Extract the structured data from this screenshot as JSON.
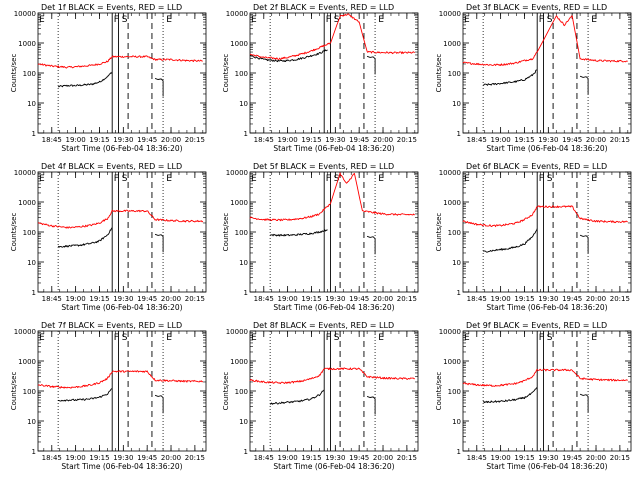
{
  "colors": {
    "events": "#000000",
    "lld": "#ff0000",
    "axis": "#000000",
    "background": "#ffffff"
  },
  "chart_data": {
    "type": "line",
    "y_scale": "log",
    "ylim": [
      1,
      10000
    ],
    "xlim": [
      "18:36:20",
      "20:22"
    ],
    "ylabel": "Counts/sec",
    "xlabel": "Start Time (06-Feb-04 18:36:20)",
    "x_ticks": [
      "18:45",
      "19:00",
      "19:15",
      "19:30",
      "19:45",
      "20:00",
      "20:15"
    ],
    "y_ticks": [
      "1",
      "10",
      "100",
      "1000",
      "10000"
    ],
    "marker_labels": [
      "E",
      "F",
      "S",
      "E"
    ],
    "panels": [
      {
        "title": "Det 1f BLACK = Events, RED = LLD",
        "series": [
          {
            "name": "Events",
            "x": [
              "18:49",
              "18:55",
              "19:00",
              "19:05",
              "19:10",
              "19:15",
              "19:20",
              "19:23"
            ],
            "values": [
              35,
              38,
              38,
              40,
              42,
              50,
              75,
              110
            ]
          },
          {
            "name": "LLD",
            "x": [
              "18:36:20",
              "18:45",
              "18:55",
              "19:00",
              "19:05",
              "19:10",
              "19:15",
              "19:20",
              "19:23",
              "19:45",
              "19:50",
              "20:00",
              "20:10",
              "20:20"
            ],
            "values": [
              200,
              170,
              155,
              160,
              170,
              180,
              200,
              240,
              350,
              350,
              280,
              280,
              260,
              250
            ]
          }
        ]
      },
      {
        "title": "Det 2f BLACK = Events, RED = LLD",
        "series": [
          {
            "name": "Events",
            "x": [
              "18:36:20",
              "18:45",
              "18:55",
              "19:00",
              "19:05",
              "19:10",
              "19:15",
              "19:20",
              "19:25"
            ],
            "values": [
              380,
              280,
              250,
              260,
              280,
              320,
              380,
              450,
              600
            ]
          },
          {
            "name": "LLD",
            "x": [
              "18:36:20",
              "18:45",
              "18:55",
              "19:00",
              "19:05",
              "19:10",
              "19:15",
              "19:20",
              "19:27",
              "19:33",
              "19:38",
              "19:45",
              "19:50",
              "20:00",
              "20:10",
              "20:20"
            ],
            "values": [
              420,
              330,
              300,
              330,
              380,
              450,
              550,
              700,
              1000,
              8000,
              9000,
              5000,
              500,
              480,
              470,
              480
            ]
          }
        ]
      },
      {
        "title": "Det 3f BLACK = Events, RED = LLD",
        "series": [
          {
            "name": "Events",
            "x": [
              "18:49",
              "18:55",
              "19:00",
              "19:05",
              "19:10",
              "19:15",
              "19:20",
              "19:23"
            ],
            "values": [
              40,
              42,
              45,
              48,
              52,
              60,
              85,
              130
            ]
          },
          {
            "name": "LLD",
            "x": [
              "18:36:20",
              "18:45",
              "18:55",
              "19:00",
              "19:05",
              "19:10",
              "19:15",
              "19:20",
              "19:23",
              "19:35",
              "19:40",
              "19:45",
              "19:50",
              "20:00",
              "20:10",
              "20:20"
            ],
            "values": [
              220,
              200,
              185,
              190,
              200,
              220,
              260,
              300,
              500,
              8000,
              4000,
              8000,
              300,
              260,
              250,
              250
            ]
          }
        ]
      },
      {
        "title": "Det 4f BLACK = Events, RED = LLD",
        "series": [
          {
            "name": "Events",
            "x": [
              "18:49",
              "18:55",
              "19:00",
              "19:05",
              "19:10",
              "19:15",
              "19:20",
              "19:23"
            ],
            "values": [
              32,
              34,
              35,
              38,
              42,
              50,
              80,
              140
            ]
          },
          {
            "name": "LLD",
            "x": [
              "18:36:20",
              "18:45",
              "18:55",
              "19:00",
              "19:05",
              "19:10",
              "19:15",
              "19:20",
              "19:23",
              "19:45",
              "19:50",
              "20:00",
              "20:10",
              "20:20"
            ],
            "values": [
              200,
              160,
              140,
              145,
              155,
              170,
              200,
              280,
              500,
              500,
              260,
              240,
              230,
              230
            ]
          }
        ]
      },
      {
        "title": "Det 5f BLACK = Events, RED = LLD",
        "series": [
          {
            "name": "Events",
            "x": [
              "18:49",
              "18:55",
              "19:00",
              "19:05",
              "19:10",
              "19:15",
              "19:20",
              "19:25"
            ],
            "values": [
              80,
              78,
              78,
              80,
              85,
              90,
              100,
              120
            ]
          },
          {
            "name": "LLD",
            "x": [
              "18:36:20",
              "18:45",
              "18:55",
              "19:00",
              "19:05",
              "19:10",
              "19:15",
              "19:20",
              "19:27",
              "19:33",
              "19:37",
              "19:42",
              "19:47",
              "20:00",
              "20:10",
              "20:20"
            ],
            "values": [
              300,
              260,
              250,
              255,
              270,
              290,
              330,
              400,
              900,
              9000,
              4000,
              9000,
              500,
              400,
              380,
              380
            ]
          }
        ]
      },
      {
        "title": "Det 6f BLACK = Events, RED = LLD",
        "series": [
          {
            "name": "Events",
            "x": [
              "18:49",
              "18:55",
              "19:00",
              "19:05",
              "19:10",
              "19:15",
              "19:20",
              "19:23"
            ],
            "values": [
              22,
              24,
              26,
              28,
              32,
              40,
              70,
              130
            ]
          },
          {
            "name": "LLD",
            "x": [
              "18:36:20",
              "18:45",
              "18:55",
              "19:00",
              "19:05",
              "19:10",
              "19:15",
              "19:20",
              "19:23",
              "19:45",
              "19:50",
              "20:00",
              "20:10",
              "20:20"
            ],
            "values": [
              230,
              180,
              160,
              165,
              180,
              200,
              260,
              380,
              700,
              700,
              280,
              230,
              220,
              220
            ]
          }
        ]
      },
      {
        "title": "Det 7f BLACK = Events, RED = LLD",
        "series": [
          {
            "name": "Events",
            "x": [
              "18:49",
              "18:55",
              "19:00",
              "19:05",
              "19:10",
              "19:15",
              "19:20",
              "19:23"
            ],
            "values": [
              48,
              50,
              50,
              52,
              55,
              62,
              80,
              120
            ]
          },
          {
            "name": "LLD",
            "x": [
              "18:36:20",
              "18:45",
              "18:55",
              "19:00",
              "19:05",
              "19:10",
              "19:15",
              "19:20",
              "19:23",
              "19:45",
              "19:50",
              "20:00",
              "20:10",
              "20:20"
            ],
            "values": [
              160,
              140,
              130,
              135,
              145,
              160,
              190,
              260,
              450,
              450,
              230,
              220,
              210,
              210
            ]
          }
        ]
      },
      {
        "title": "Det 8f BLACK = Events, RED = LLD",
        "series": [
          {
            "name": "Events",
            "x": [
              "18:49",
              "18:55",
              "19:00",
              "19:05",
              "19:10",
              "19:15",
              "19:20",
              "19:23"
            ],
            "values": [
              38,
              40,
              42,
              44,
              48,
              55,
              75,
              110
            ]
          },
          {
            "name": "LLD",
            "x": [
              "18:36:20",
              "18:45",
              "18:55",
              "19:00",
              "19:05",
              "19:10",
              "19:15",
              "19:20",
              "19:23",
              "19:45",
              "19:50",
              "20:00",
              "20:10",
              "20:20"
            ],
            "values": [
              230,
              200,
              185,
              190,
              200,
              220,
              260,
              330,
              550,
              550,
              300,
              270,
              260,
              260
            ]
          }
        ]
      },
      {
        "title": "Det 9f BLACK = Events, RED = LLD",
        "series": [
          {
            "name": "Events",
            "x": [
              "18:49",
              "18:55",
              "19:00",
              "19:05",
              "19:10",
              "19:15",
              "19:20",
              "19:23"
            ],
            "values": [
              42,
              44,
              45,
              48,
              52,
              60,
              85,
              130
            ]
          },
          {
            "name": "LLD",
            "x": [
              "18:36:20",
              "18:45",
              "18:55",
              "19:00",
              "19:05",
              "19:10",
              "19:15",
              "19:20",
              "19:23",
              "19:45",
              "19:50",
              "20:00",
              "20:10",
              "20:20"
            ],
            "values": [
              180,
              160,
              150,
              155,
              165,
              180,
              220,
              300,
              500,
              500,
              260,
              240,
              230,
              230
            ]
          }
        ]
      }
    ]
  }
}
